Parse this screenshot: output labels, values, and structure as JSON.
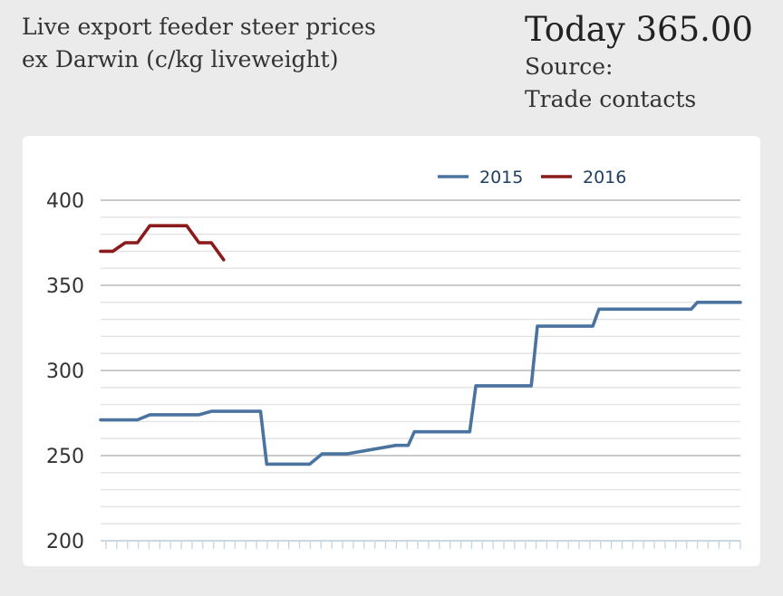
{
  "header": {
    "title_line1": "Live export feeder steer prices",
    "title_line2": "ex Darwin (c/kg liveweight)",
    "today": "Today 365.00",
    "source_line1": "Source:",
    "source_line2": "Trade contacts"
  },
  "colors": {
    "series_2015": "#4a73a0",
    "series_2016": "#8b1a1a",
    "major_grid": "#b8b8b8",
    "minor_grid": "#e2e2e2",
    "x_axis": "#c9d6e3"
  },
  "chart_data": {
    "type": "line",
    "title": "Live export feeder steer prices ex Darwin (c/kg liveweight)",
    "xlabel": "",
    "ylabel": "",
    "ylim": [
      200,
      400
    ],
    "yticks": [
      400,
      350,
      300,
      250,
      200
    ],
    "minor_step": 10,
    "x_range": [
      0,
      52
    ],
    "legend_position": "top-center",
    "grid": true,
    "series": [
      {
        "name": "2015",
        "x": [
          0,
          3,
          4,
          8,
          9,
          12,
          13,
          13.5,
          17,
          18,
          19,
          20,
          24,
          25,
          25.5,
          30,
          30.5,
          35,
          35.5,
          40,
          40.5,
          44,
          44.5,
          48,
          48.5,
          52
        ],
        "values": [
          271,
          271,
          274,
          274,
          276,
          276,
          276,
          245,
          245,
          251,
          251,
          251,
          256,
          256,
          264,
          264,
          291,
          291,
          326,
          326,
          336,
          336,
          336,
          336,
          340,
          340
        ]
      },
      {
        "name": "2016",
        "x": [
          0,
          1,
          2,
          3,
          4,
          5,
          6,
          7,
          8,
          9,
          10
        ],
        "values": [
          370,
          370,
          375,
          375,
          385,
          385,
          385,
          385,
          375,
          375,
          365
        ]
      }
    ]
  }
}
